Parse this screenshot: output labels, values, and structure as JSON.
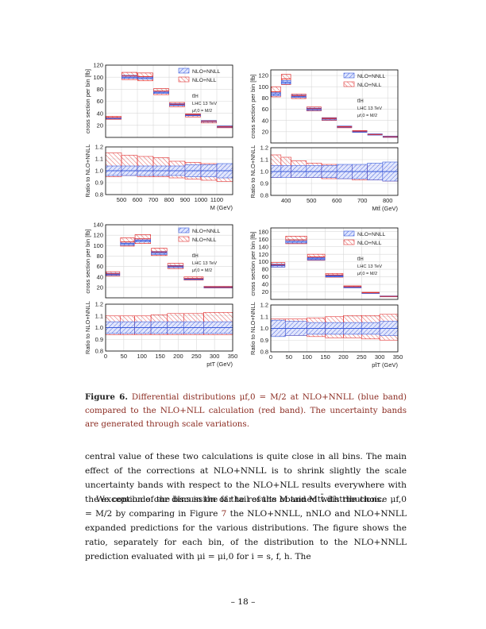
{
  "figure": {
    "labels": {
      "ylabel_top": "cross section per bin [fb]",
      "ylabel_ratio": "Ratio to NLO+NNLL",
      "legend_blue": "NLO+NNLL",
      "legend_red": "NLO+NLL",
      "process": "tt̄H",
      "collider": "LHC 13 TeV",
      "scale": "μf,0 = M/2"
    },
    "colors": {
      "blue": "#3b5bdb",
      "red": "#e03131",
      "grid": "#d9d9d9"
    }
  },
  "chart_data": [
    {
      "type": "bar",
      "panel": "top-left",
      "x_edges": [
        400,
        500,
        600,
        700,
        800,
        900,
        1000,
        1100,
        1200
      ],
      "xlim": [
        400,
        1200
      ],
      "xticks": [
        500,
        600,
        700,
        800,
        900,
        1000,
        1100
      ],
      "xlabel": "M (GeV)",
      "ylabel": "cross section per bin [fb]",
      "ylim": [
        0,
        120
      ],
      "yticks": [
        20,
        40,
        60,
        80,
        100,
        120
      ],
      "series": [
        {
          "name": "NLO+NNLL",
          "center": [
            32,
            100,
            99,
            75,
            54,
            37,
            27,
            18
          ],
          "lo": [
            31,
            98,
            97,
            73,
            53,
            36,
            26,
            17
          ],
          "hi": [
            33,
            103,
            101,
            77,
            56,
            38,
            28,
            19
          ]
        },
        {
          "name": "NLO+NLL",
          "center": [
            33,
            102,
            101,
            77,
            55,
            38,
            27,
            18
          ],
          "lo": [
            30,
            96,
            94,
            71,
            51,
            34,
            24,
            16
          ],
          "hi": [
            35,
            108,
            107,
            81,
            58,
            39,
            28,
            18
          ]
        }
      ],
      "ratio": {
        "ylabel": "Ratio to NLO+NNLL",
        "ylim": [
          0.8,
          1.2
        ],
        "yticks": [
          0.8,
          0.9,
          1.0,
          1.1,
          1.2
        ],
        "blue": {
          "lo": [
            0.96,
            0.96,
            0.96,
            0.96,
            0.96,
            0.95,
            0.95,
            0.94
          ],
          "hi": [
            1.04,
            1.04,
            1.04,
            1.04,
            1.04,
            1.05,
            1.05,
            1.06
          ]
        },
        "red": {
          "lo": [
            0.95,
            0.96,
            0.95,
            0.95,
            0.94,
            0.93,
            0.92,
            0.91
          ],
          "hi": [
            1.15,
            1.13,
            1.12,
            1.11,
            1.08,
            1.07,
            1.06,
            1.04
          ]
        }
      }
    },
    {
      "type": "bar",
      "panel": "top-right",
      "x_edges": [
        340,
        380,
        420,
        480,
        540,
        600,
        660,
        720,
        780,
        840
      ],
      "xlim": [
        340,
        840
      ],
      "xticks": [
        400,
        500,
        600,
        700,
        800
      ],
      "xlabel": "Mtt̄ (GeV)",
      "ylabel": "cross section per bin [fb]",
      "ylim": [
        0,
        130
      ],
      "yticks": [
        20,
        40,
        60,
        80,
        100,
        120
      ],
      "series": [
        {
          "name": "NLO+NNLL",
          "center": [
            87,
            108,
            83,
            60,
            43,
            29,
            20,
            15,
            11
          ],
          "lo": [
            84,
            105,
            81,
            58,
            41,
            28,
            19,
            14,
            10
          ],
          "hi": [
            90,
            111,
            85,
            62,
            44,
            30,
            21,
            16,
            12
          ]
        },
        {
          "name": "NLO+NLL",
          "center": [
            91,
            114,
            84,
            61,
            43,
            29,
            21,
            15,
            11
          ],
          "lo": [
            82,
            104,
            79,
            57,
            40,
            27,
            19,
            14,
            10
          ],
          "hi": [
            100,
            122,
            87,
            64,
            45,
            30,
            22,
            16,
            12
          ]
        }
      ],
      "ratio": {
        "ylabel": "Ratio to NLO+NNLL",
        "ylim": [
          0.8,
          1.2
        ],
        "yticks": [
          0.8,
          0.9,
          1.0,
          1.1,
          1.2
        ],
        "blue": {
          "lo": [
            0.95,
            0.95,
            0.95,
            0.95,
            0.95,
            0.94,
            0.94,
            0.93,
            0.92
          ],
          "hi": [
            1.05,
            1.05,
            1.05,
            1.05,
            1.05,
            1.06,
            1.06,
            1.07,
            1.08
          ]
        },
        "red": {
          "lo": [
            0.95,
            0.96,
            0.95,
            0.95,
            0.94,
            0.94,
            0.93,
            0.93,
            0.92
          ],
          "hi": [
            1.14,
            1.12,
            1.09,
            1.07,
            1.06,
            1.05,
            1.05,
            1.05,
            1.04
          ]
        }
      }
    },
    {
      "type": "bar",
      "panel": "bottom-left",
      "x_edges": [
        0,
        40,
        80,
        125,
        170,
        215,
        270,
        350
      ],
      "xlim": [
        0,
        350
      ],
      "xticks": [
        0,
        50,
        100,
        150,
        200,
        250,
        300,
        350
      ],
      "xlabel": "ptT (GeV)",
      "ylabel": "cross section per bin [fb]",
      "ylim": [
        0,
        140
      ],
      "yticks": [
        20,
        40,
        60,
        80,
        100,
        120,
        140
      ],
      "series": [
        {
          "name": "NLO+NNLL",
          "center": [
            45,
            104,
            110,
            86,
            60,
            36,
            20
          ],
          "lo": [
            43,
            101,
            107,
            83,
            58,
            35,
            19
          ],
          "hi": [
            47,
            107,
            113,
            89,
            62,
            37,
            21
          ]
        },
        {
          "name": "NLO+NLL",
          "center": [
            46,
            107,
            113,
            88,
            61,
            37,
            20
          ],
          "lo": [
            42,
            99,
            104,
            81,
            56,
            34,
            19
          ],
          "hi": [
            50,
            115,
            121,
            95,
            66,
            40,
            22
          ]
        }
      ],
      "ratio": {
        "ylabel": "Ratio to NLO+NNLL",
        "ylim": [
          0.8,
          1.2
        ],
        "yticks": [
          0.8,
          0.9,
          1.0,
          1.1,
          1.2
        ],
        "blue": {
          "lo": [
            0.95,
            0.95,
            0.95,
            0.95,
            0.95,
            0.95,
            0.95
          ],
          "hi": [
            1.05,
            1.05,
            1.05,
            1.05,
            1.05,
            1.05,
            1.05
          ]
        },
        "red": {
          "lo": [
            0.94,
            0.94,
            0.94,
            0.94,
            0.94,
            0.94,
            0.94
          ],
          "hi": [
            1.1,
            1.1,
            1.1,
            1.11,
            1.12,
            1.12,
            1.13
          ]
        }
      }
    },
    {
      "type": "bar",
      "panel": "bottom-right",
      "x_edges": [
        0,
        40,
        100,
        150,
        200,
        250,
        300,
        350
      ],
      "xlim": [
        0,
        350
      ],
      "xticks": [
        0,
        50,
        100,
        150,
        200,
        250,
        300,
        350
      ],
      "xlabel": "pt̄T (GeV)",
      "ylabel": "cross section per bin [fb]",
      "ylim": [
        0,
        190
      ],
      "yticks": [
        20,
        40,
        60,
        80,
        100,
        120,
        140,
        160,
        180
      ],
      "series": [
        {
          "name": "NLO+NNLL",
          "center": [
            90,
            154,
            108,
            62,
            32,
            17,
            8
          ],
          "lo": [
            86,
            150,
            105,
            60,
            31,
            16,
            7
          ],
          "hi": [
            94,
            158,
            111,
            64,
            33,
            18,
            9
          ]
        },
        {
          "name": "NLO+NLL",
          "center": [
            92,
            158,
            113,
            65,
            34,
            18,
            8
          ],
          "lo": [
            86,
            148,
            104,
            59,
            31,
            16,
            7
          ],
          "hi": [
            98,
            168,
            120,
            69,
            36,
            19,
            9
          ]
        }
      ],
      "ratio": {
        "ylabel": "Ratio to NLO+NNLL",
        "ylim": [
          0.8,
          1.2
        ],
        "yticks": [
          0.8,
          0.9,
          1.0,
          1.1,
          1.2
        ],
        "blue": {
          "lo": [
            0.93,
            0.94,
            0.95,
            0.95,
            0.95,
            0.95,
            0.94
          ],
          "hi": [
            1.07,
            1.06,
            1.05,
            1.05,
            1.05,
            1.05,
            1.06
          ]
        },
        "red": {
          "lo": [
            0.94,
            0.94,
            0.93,
            0.92,
            0.92,
            0.91,
            0.9
          ],
          "hi": [
            1.08,
            1.08,
            1.09,
            1.1,
            1.11,
            1.11,
            1.12
          ]
        }
      }
    }
  ],
  "caption": {
    "label": "Figure 6",
    "text": "Differential distributions μf,0 = M/2 at NLO+NNLL (blue band) compared to the NLO+NLL calculation (red band). The uncertainty bands are generated through scale variations."
  },
  "body": {
    "p1": "central value of these two calculations is quite close in all bins. The main effect of the corrections at NLO+NNLL is to shrink slightly the scale uncertainty bands with respect to the NLO+NLL results everywhere with the exception of the bins in the far tail of the M and Mtt̄ distributions.",
    "p2_a": "We conclude our discussion of the results obtained with the choice μf,0 = M/2 by comparing in Figure ",
    "p2_link": "7",
    "p2_b": " the NLO+NNLL, nNLO and NLO+NNLL expanded predictions for the various distributions. The figure shows the ratio, separately for each bin, of the distribution to the NLO+NNLL prediction evaluated with μi = μi,0 for i = s, f, h. The"
  },
  "page_number": "– 18 –"
}
